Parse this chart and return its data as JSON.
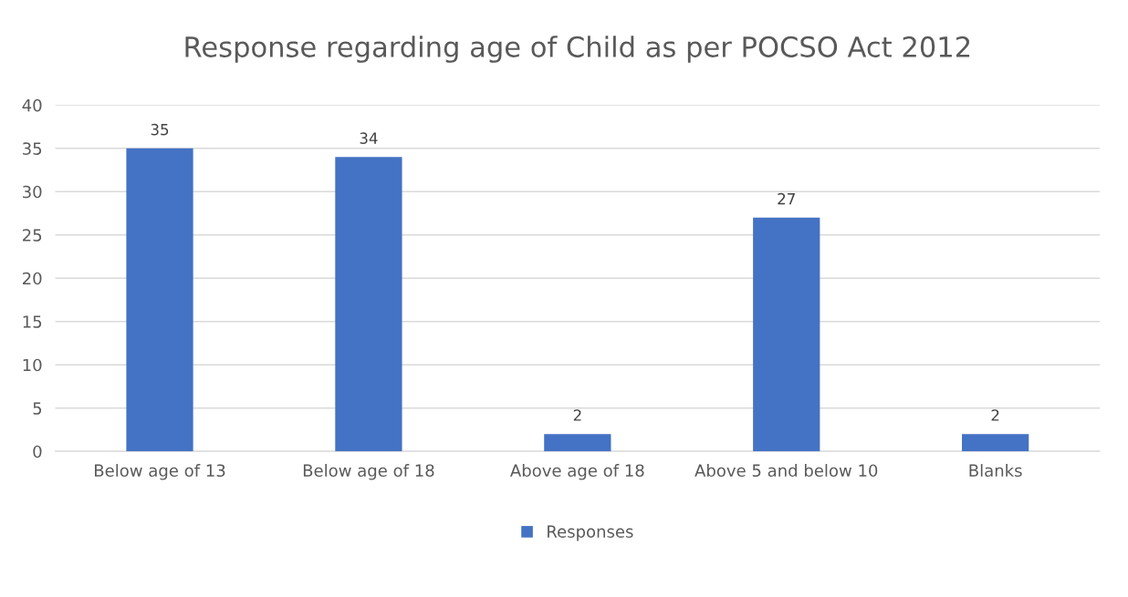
{
  "chart_data": {
    "type": "bar",
    "title": "Response regarding age of Child as per POCSO Act 2012",
    "categories": [
      "Below age of 13",
      "Below age of 18",
      "Above age of 18",
      "Above 5 and below 10",
      "Blanks"
    ],
    "series": [
      {
        "name": "Responses",
        "color": "#4472c4",
        "values": [
          35,
          34,
          2,
          27,
          2
        ]
      }
    ],
    "ylim": [
      0,
      40
    ],
    "yticks": [
      0,
      5,
      10,
      15,
      20,
      25,
      30,
      35,
      40
    ],
    "grid": "y",
    "legend": "bottom",
    "data_labels": true
  }
}
